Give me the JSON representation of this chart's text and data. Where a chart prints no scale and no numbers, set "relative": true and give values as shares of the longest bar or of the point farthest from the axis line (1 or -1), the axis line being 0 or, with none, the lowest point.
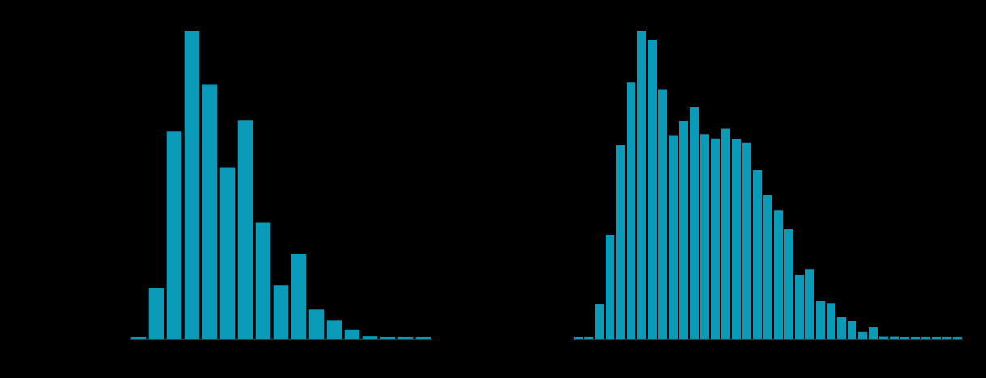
{
  "chart_data": [
    {
      "type": "bar",
      "relative": true,
      "categories": [
        null,
        null,
        null,
        null,
        null,
        null,
        null,
        null,
        null,
        null,
        null,
        null,
        null,
        null,
        null,
        null,
        null
      ],
      "series": [
        {
          "color": "#0a9bb8",
          "values": [
            0.008,
            0.165,
            0.675,
            1,
            0.826,
            0.556,
            0.709,
            0.378,
            0.175,
            0.277,
            0.096,
            0.062,
            0.032,
            0.01,
            0.008,
            0.008,
            0.008
          ]
        }
      ]
    },
    {
      "type": "bar",
      "relative": true,
      "categories": [
        null,
        null,
        null,
        null,
        null,
        null,
        null,
        null,
        null,
        null,
        null,
        null,
        null,
        null,
        null,
        null,
        null,
        null,
        null,
        null,
        null,
        null,
        null,
        null,
        null,
        null,
        null,
        null,
        null,
        null,
        null,
        null,
        null,
        null,
        null,
        null,
        null
      ],
      "series": [
        {
          "color": "#0a9bb8",
          "values": [
            0.008,
            0.008,
            0.114,
            0.338,
            0.629,
            0.832,
            1,
            0.971,
            0.81,
            0.661,
            0.707,
            0.751,
            0.664,
            0.65,
            0.682,
            0.649,
            0.637,
            0.548,
            0.466,
            0.418,
            0.356,
            0.209,
            0.227,
            0.123,
            0.117,
            0.072,
            0.058,
            0.024,
            0.039,
            0.009,
            0.009,
            0.008,
            0.008,
            0.008,
            0.008,
            0.008,
            0.008
          ]
        }
      ]
    }
  ]
}
